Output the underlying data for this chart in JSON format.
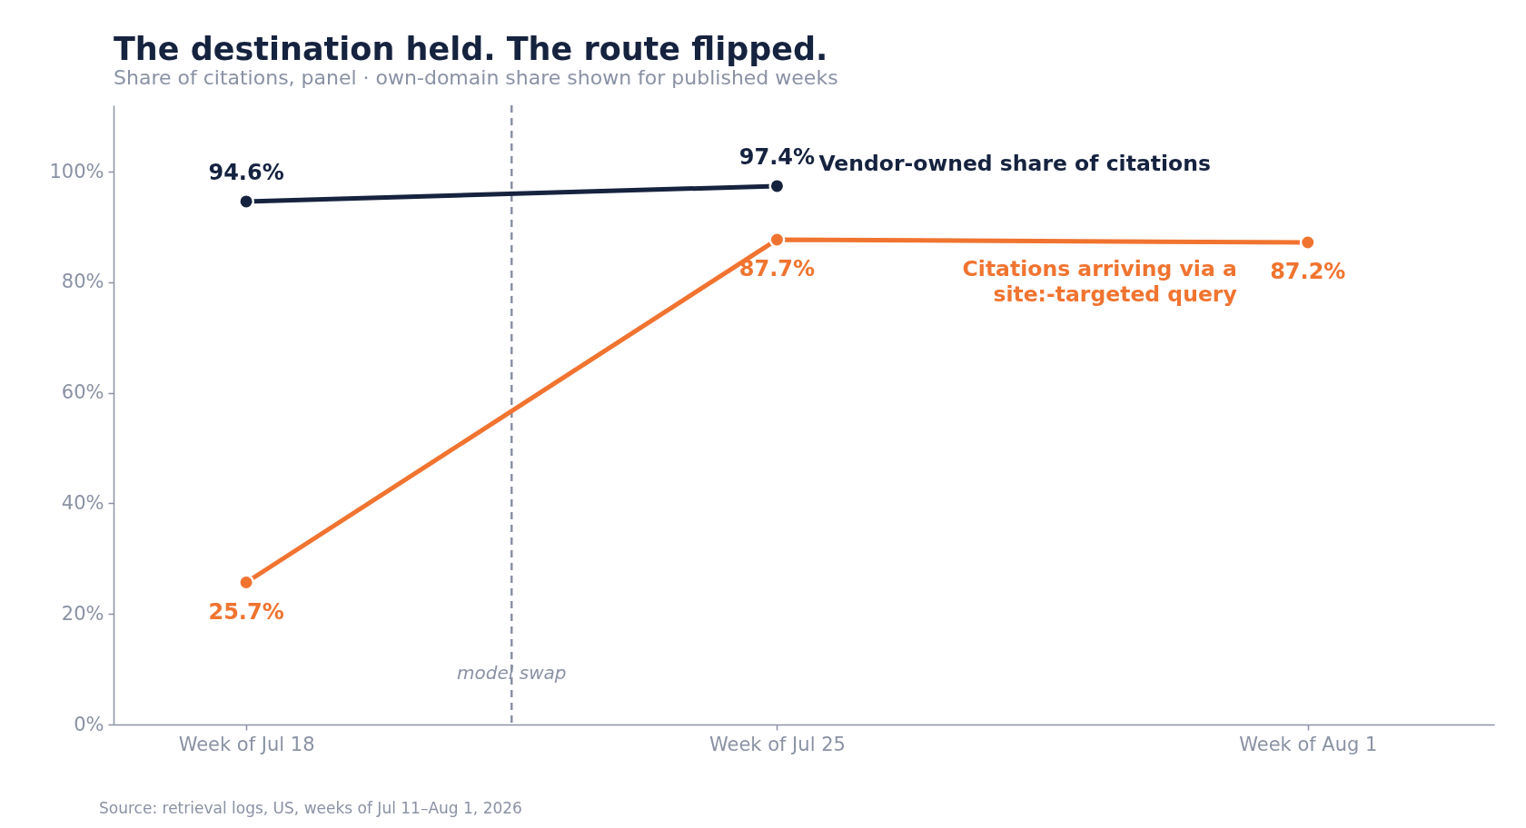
{
  "chart_data": {
    "type": "line",
    "title": "The destination held. The route flipped.",
    "subtitle": "Share of citations, panel · own-domain share shown for published weeks",
    "x": [
      "2026-07-18",
      "2026-07-25",
      "2026-08-01"
    ],
    "xlim": [
      "2026-07-16T06:00",
      "2026-08-03T11:00"
    ],
    "xticks": [
      {
        "value": "2026-07-18",
        "label": "Week of Jul 18"
      },
      {
        "value": "2026-07-25",
        "label": "Week of Jul 25"
      },
      {
        "value": "2026-08-01",
        "label": "Week of Aug 1"
      }
    ],
    "ylim": [
      0,
      112
    ],
    "yticks": [
      {
        "value": 0,
        "label": "0%"
      },
      {
        "value": 20,
        "label": "20%"
      },
      {
        "value": 40,
        "label": "40%"
      },
      {
        "value": 60,
        "label": "60%"
      },
      {
        "value": 80,
        "label": "80%"
      },
      {
        "value": 100,
        "label": "100%"
      }
    ],
    "series": [
      {
        "name": "Vendor-owned share of citations",
        "color": "#16233f",
        "values": [
          94.6,
          97.4,
          null
        ],
        "value_labels": [
          "94.6%",
          "97.4%",
          null
        ]
      },
      {
        "name": "Citations arriving via a site:-targeted query",
        "color": "#f07430",
        "values": [
          25.7,
          87.7,
          87.2
        ],
        "value_labels": [
          "25.7%",
          "87.7%",
          "87.2%"
        ]
      }
    ],
    "ref_lines": [
      {
        "axis": "x",
        "value": "2026-07-21T12:00",
        "label": "model swap",
        "color": "#8a92a4",
        "line_style": "dashed"
      }
    ],
    "annotations": [
      "Source: retrieval logs, US, weeks of Jul 11–Aug 1, 2026"
    ],
    "grid": false,
    "legend": false,
    "marker": "circle",
    "line_style": "solid"
  }
}
